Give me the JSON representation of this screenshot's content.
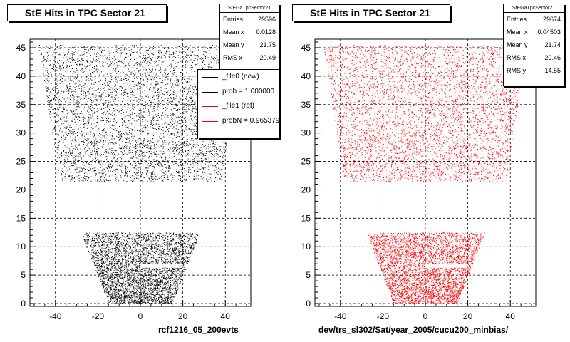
{
  "footer_text": "",
  "chart_data": [
    {
      "type": "scatter",
      "title": "StE Hits in TPC Sector 21",
      "xlabel": "rcf1216_05_200evts",
      "ylabel": "",
      "xlim": [
        -52,
        52
      ],
      "ylim": [
        -0.5,
        46.5
      ],
      "xticks": [
        "-40",
        "-20",
        "0",
        "20",
        "40"
      ],
      "yticks": [
        "0",
        "5",
        "10",
        "15",
        "20",
        "25",
        "30",
        "35",
        "40",
        "45"
      ],
      "grid": true,
      "color": "#000000",
      "stats": {
        "name": "StEGaTpcSector21",
        "rows": [
          {
            "label": "Entries",
            "value": "29596"
          },
          {
            "label": "Mean x",
            "value": "0.0128"
          },
          {
            "label": "Mean y",
            "value": "21.75"
          },
          {
            "label": "RMS x",
            "value": "20.49"
          }
        ]
      },
      "legend": [
        {
          "label": "_file0 (new)",
          "color": "#000000"
        },
        {
          "label": "prob = 1.000000",
          "color": "#000000"
        },
        {
          "label": "_file1 (ref)",
          "color": "#ff0000"
        },
        {
          "label": "probN = 0.965379",
          "color": "#ff0000"
        }
      ],
      "regions": [
        {
          "name": "outer",
          "y_min": 21.5,
          "y_max": 45.5,
          "x_half_at_ymin": 38,
          "x_half_at_ymax": 48
        },
        {
          "name": "inner",
          "y_min": 0,
          "y_max": 12.5,
          "x_half_at_ymin": 15,
          "x_half_at_ymax": 28
        }
      ]
    },
    {
      "type": "scatter",
      "title": "StE Hits in TPC Sector 21",
      "xlabel": "dev/trs_sl302/Sat/year_2005/cucu200_minbias/",
      "ylabel": "",
      "xlim": [
        -52,
        52
      ],
      "ylim": [
        -0.5,
        46.5
      ],
      "xticks": [
        "-40",
        "-20",
        "0",
        "20",
        "40"
      ],
      "yticks": [
        "0",
        "5",
        "10",
        "15",
        "20",
        "25",
        "30",
        "35",
        "40",
        "45"
      ],
      "grid": true,
      "color": "#ff0000",
      "stats": {
        "name": "StEGaTpcSector21",
        "rows": [
          {
            "label": "Entries",
            "value": "29674"
          },
          {
            "label": "Mean x",
            "value": "0.04503"
          },
          {
            "label": "Mean y",
            "value": "21.74"
          },
          {
            "label": "RMS x",
            "value": "20.46"
          },
          {
            "label": "RMS y",
            "value": "14.55"
          }
        ]
      },
      "regions": [
        {
          "name": "outer",
          "y_min": 21.5,
          "y_max": 45.5,
          "x_half_at_ymin": 38,
          "x_half_at_ymax": 48
        },
        {
          "name": "inner",
          "y_min": 0,
          "y_max": 12.5,
          "x_half_at_ymin": 15,
          "x_half_at_ymax": 28
        }
      ]
    }
  ]
}
